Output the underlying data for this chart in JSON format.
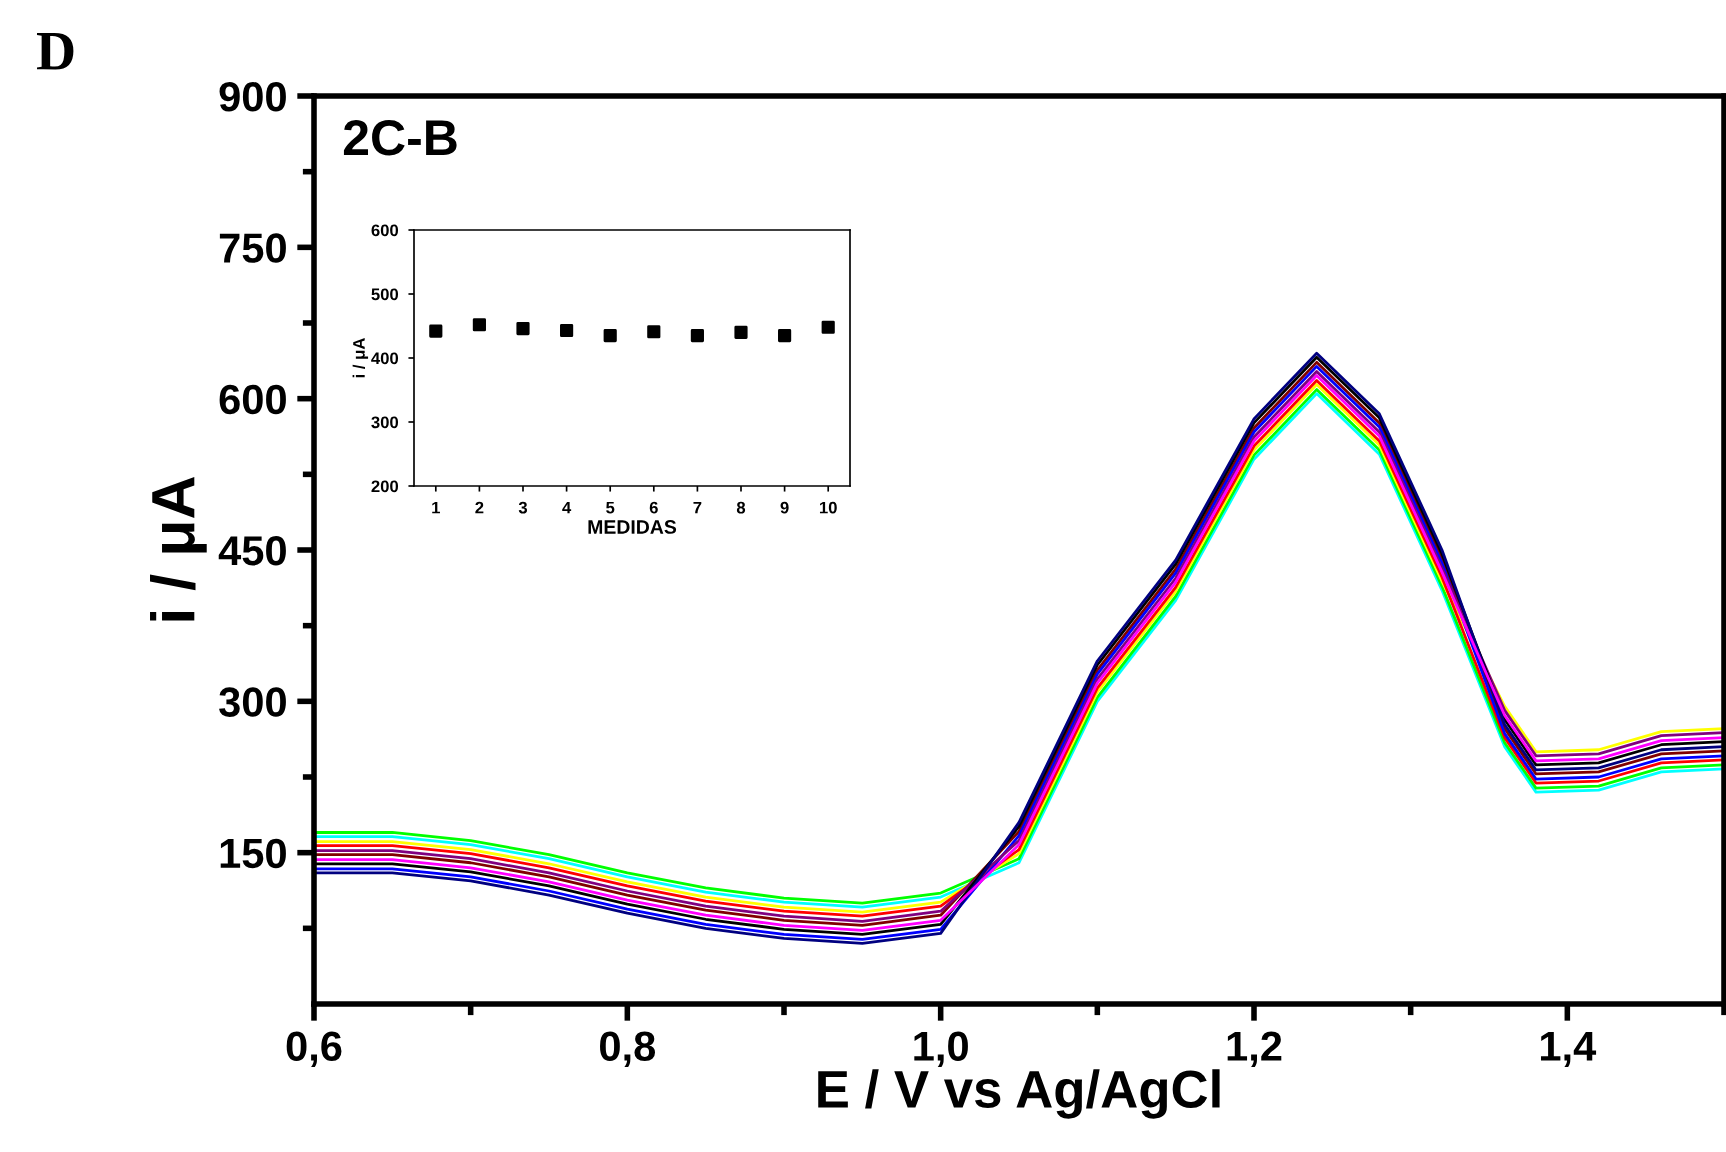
{
  "chart_data": [
    {
      "type": "line",
      "xlabel": "E / V vs Ag/AgCl",
      "ylabel": "i / μA",
      "annotations": [
        "D",
        "2C-B"
      ],
      "x": [
        0.6,
        0.65,
        0.7,
        0.75,
        0.8,
        0.85,
        0.9,
        0.95,
        1.0,
        1.05,
        1.1,
        1.15,
        1.2,
        1.24,
        1.28,
        1.32,
        1.36,
        1.38,
        1.42,
        1.46,
        1.5
      ],
      "xlim": [
        0.6,
        1.5
      ],
      "ylim": [
        0,
        900
      ],
      "xticks": [
        {
          "value": 0.6,
          "label": "0,6"
        },
        {
          "value": 0.8,
          "label": "0,8"
        },
        {
          "value": 1.0,
          "label": "1,0"
        },
        {
          "value": 1.2,
          "label": "1,2"
        },
        {
          "value": 1.4,
          "label": "1,4"
        }
      ],
      "yticks": [
        150,
        300,
        450,
        600,
        750,
        900
      ],
      "grid": false,
      "legend": false,
      "marker": "none",
      "line_style": "solid",
      "series": [
        {
          "color": "#00ffff",
          "values": [
            166,
            166,
            158,
            144,
            126,
            111,
            101,
            96,
            106,
            140,
            300,
            400,
            540,
            605,
            545,
            410,
            255,
            210,
            212,
            230,
            233
          ]
        },
        {
          "color": "#00ff00",
          "values": [
            170,
            170,
            162,
            148,
            130,
            115,
            105,
            100,
            110,
            144,
            304,
            404,
            544,
            609,
            549,
            414,
            259,
            214,
            216,
            234,
            237
          ]
        },
        {
          "color": "#ffff00",
          "values": [
            161,
            161,
            153,
            139,
            121,
            106,
            96,
            91,
            101,
            149,
            309,
            409,
            549,
            614,
            554,
            419,
            295,
            250,
            252,
            270,
            273
          ]
        },
        {
          "color": "#ff0000",
          "values": [
            157,
            157,
            149,
            135,
            117,
            102,
            92,
            87,
            97,
            153,
            313,
            413,
            553,
            618,
            558,
            423,
            264,
            219,
            221,
            239,
            242
          ]
        },
        {
          "color": "#800000",
          "values": [
            148,
            148,
            140,
            126,
            108,
            93,
            83,
            78,
            88,
            171,
            331,
            431,
            571,
            636,
            576,
            441,
            273,
            228,
            230,
            248,
            251
          ]
        },
        {
          "color": "#0000ff",
          "values": [
            134,
            134,
            126,
            112,
            94,
            79,
            69,
            64,
            74,
            167,
            327,
            427,
            567,
            632,
            572,
            437,
            268,
            223,
            225,
            243,
            246
          ]
        },
        {
          "color": "#800080",
          "values": [
            152,
            152,
            144,
            130,
            112,
            97,
            87,
            82,
            92,
            162,
            322,
            422,
            562,
            627,
            567,
            432,
            291,
            246,
            248,
            266,
            269
          ]
        },
        {
          "color": "#000000",
          "values": [
            139,
            139,
            131,
            117,
            99,
            84,
            74,
            69,
            79,
            176,
            336,
            436,
            576,
            641,
            581,
            446,
            282,
            237,
            239,
            257,
            260
          ]
        },
        {
          "color": "#000080",
          "values": [
            130,
            130,
            122,
            108,
            90,
            75,
            65,
            60,
            70,
            180,
            340,
            440,
            580,
            645,
            585,
            450,
            277,
            232,
            234,
            252,
            255
          ]
        },
        {
          "color": "#ff00ff",
          "values": [
            143,
            143,
            135,
            121,
            103,
            88,
            78,
            73,
            83,
            158,
            318,
            418,
            558,
            623,
            563,
            428,
            286,
            241,
            243,
            261,
            264
          ]
        }
      ]
    },
    {
      "type": "scatter",
      "xlabel": "MEDIDAS",
      "ylabel": "i / μA",
      "x": [
        1,
        2,
        3,
        4,
        5,
        6,
        7,
        8,
        9,
        10
      ],
      "xlim": [
        0.5,
        10.5
      ],
      "ylim": [
        200,
        600
      ],
      "xticks": [
        1,
        2,
        3,
        4,
        5,
        6,
        7,
        8,
        9,
        10
      ],
      "yticks": [
        200,
        300,
        400,
        500,
        600
      ],
      "grid": false,
      "legend": false,
      "marker": "square",
      "series": [
        {
          "color": "#000000",
          "values": [
            442,
            452,
            446,
            443,
            435,
            441,
            435,
            440,
            435,
            448
          ]
        }
      ]
    }
  ]
}
